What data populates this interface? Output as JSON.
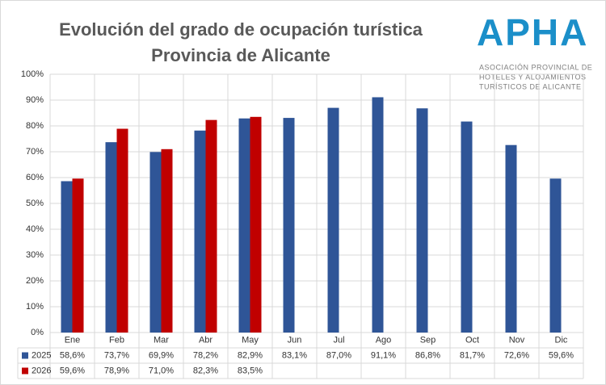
{
  "chart_data": {
    "type": "bar",
    "title": "Evolución del grado de ocupación turística",
    "subtitle": "Provincia de Alicante",
    "categories": [
      "Ene",
      "Feb",
      "Mar",
      "Abr",
      "May",
      "Jun",
      "Jul",
      "Ago",
      "Sep",
      "Oct",
      "Nov",
      "Dic"
    ],
    "series": [
      {
        "name": "2025",
        "color": "#2f5597",
        "values": [
          58.6,
          73.7,
          69.9,
          78.2,
          82.9,
          83.1,
          87.0,
          91.1,
          86.8,
          81.7,
          72.6,
          59.6
        ],
        "value_labels": [
          "58,6%",
          "73,7%",
          "69,9%",
          "78,2%",
          "82,9%",
          "83,1%",
          "87,0%",
          "91,1%",
          "86,8%",
          "81,7%",
          "72,6%",
          "59,6%"
        ]
      },
      {
        "name": "2026",
        "color": "#c00000",
        "values": [
          59.6,
          78.9,
          71.0,
          82.3,
          83.5,
          null,
          null,
          null,
          null,
          null,
          null,
          null
        ],
        "value_labels": [
          "59,6%",
          "78,9%",
          "71,0%",
          "82,3%",
          "83,5%",
          null,
          null,
          null,
          null,
          null,
          null,
          null
        ]
      }
    ],
    "ylim": [
      0,
      100
    ],
    "yticks": [
      {
        "value": 0,
        "label": "0%"
      },
      {
        "value": 10,
        "label": "10%"
      },
      {
        "value": 20,
        "label": "20%"
      },
      {
        "value": 30,
        "label": "30%"
      },
      {
        "value": 40,
        "label": "40%"
      },
      {
        "value": 50,
        "label": "50%"
      },
      {
        "value": 60,
        "label": "60%"
      },
      {
        "value": 70,
        "label": "70%"
      },
      {
        "value": 80,
        "label": "80%"
      },
      {
        "value": 90,
        "label": "90%"
      },
      {
        "value": 100,
        "label": "100%"
      }
    ],
    "grid": true
  },
  "logo": {
    "name": "APHA",
    "lines": [
      "ASOCIACIÓN PROVINCIAL DE",
      "HOTELES Y ALOJAMIENTOS",
      "TURÍSTICOS DE ALICANTE"
    ]
  }
}
